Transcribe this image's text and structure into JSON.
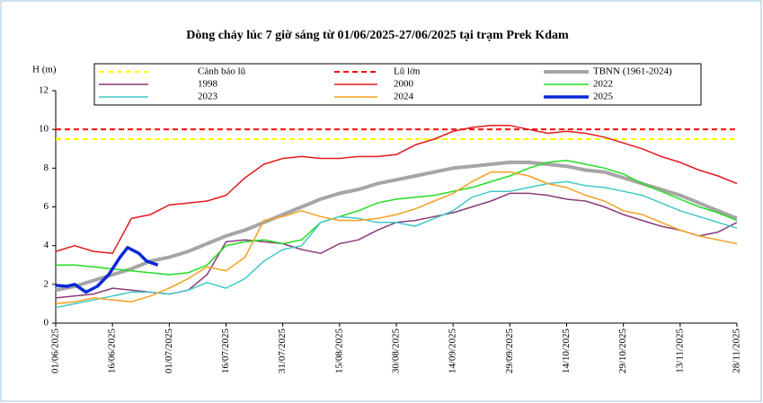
{
  "chart_data": {
    "type": "line",
    "title": "Dòng chảy lúc 7 giờ sáng từ 01/06/2025-27/06/2025 tại trạm Prek Kdam",
    "y_label": "H (m)",
    "ylim": [
      0,
      12
    ],
    "yticks": [
      0,
      2,
      4,
      6,
      8,
      10,
      12
    ],
    "xlim": [
      "01/06/2025",
      "28/11/2025"
    ],
    "xticks": [
      "01/06/2025",
      "16/06/2025",
      "01/07/2025",
      "16/07/2025",
      "31/07/2025",
      "15/08/2025",
      "30/08/2025",
      "14/09/2025",
      "29/09/2025",
      "14/10/2025",
      "29/10/2025",
      "13/11/2025",
      "28/11/2025"
    ],
    "thresholds": [
      {
        "name": "Cảnh báo lũ",
        "value": 9.5,
        "color": "#ffff00"
      },
      {
        "name": "Lũ lớn",
        "value": 10,
        "color": "#ff0000"
      }
    ],
    "x": [
      "01/06/2025",
      "06/06/2025",
      "11/06/2025",
      "16/06/2025",
      "21/06/2025",
      "26/06/2025",
      "01/07/2025",
      "06/07/2025",
      "11/07/2025",
      "16/07/2025",
      "21/07/2025",
      "26/07/2025",
      "31/07/2025",
      "05/08/2025",
      "10/08/2025",
      "15/08/2025",
      "20/08/2025",
      "25/08/2025",
      "30/08/2025",
      "04/09/2025",
      "09/09/2025",
      "14/09/2025",
      "19/09/2025",
      "24/09/2025",
      "29/09/2025",
      "04/10/2025",
      "09/10/2025",
      "14/10/2025",
      "19/10/2025",
      "24/10/2025",
      "29/10/2025",
      "03/11/2025",
      "08/11/2025",
      "13/11/2025",
      "18/11/2025",
      "23/11/2025",
      "28/11/2025"
    ],
    "series": [
      {
        "name": "TBNN (1961-2024)",
        "color": "#a6a6a6",
        "width": 4,
        "values": [
          1.7,
          1.9,
          2.2,
          2.5,
          2.8,
          3.2,
          3.4,
          3.7,
          4.1,
          4.5,
          4.8,
          5.2,
          5.6,
          6.0,
          6.4,
          6.7,
          6.9,
          7.2,
          7.4,
          7.6,
          7.8,
          8.0,
          8.1,
          8.2,
          8.3,
          8.3,
          8.2,
          8.1,
          7.9,
          7.8,
          7.5,
          7.2,
          6.9,
          6.6,
          6.2,
          5.8,
          5.4
        ]
      },
      {
        "name": "1998",
        "color": "#8b3a7a",
        "width": 1.5,
        "values": [
          1.3,
          1.4,
          1.5,
          1.8,
          1.7,
          1.6,
          1.5,
          1.7,
          2.5,
          4.2,
          4.3,
          4.2,
          4.1,
          3.8,
          3.6,
          4.1,
          4.3,
          4.8,
          5.2,
          5.3,
          5.5,
          5.7,
          6.0,
          6.3,
          6.7,
          6.7,
          6.6,
          6.4,
          6.3,
          6.0,
          5.6,
          5.3,
          5.0,
          4.8,
          4.5,
          4.7,
          5.2
        ]
      },
      {
        "name": "2000",
        "color": "#e31a1c",
        "width": 1.5,
        "values": [
          3.7,
          4.0,
          3.7,
          3.6,
          5.4,
          5.6,
          6.1,
          6.2,
          6.3,
          6.6,
          7.5,
          8.2,
          8.5,
          8.6,
          8.5,
          8.5,
          8.6,
          8.6,
          8.7,
          9.2,
          9.5,
          9.9,
          10.1,
          10.2,
          10.2,
          10.0,
          9.8,
          9.9,
          9.8,
          9.6,
          9.3,
          9.0,
          8.6,
          8.3,
          7.9,
          7.6,
          7.2
        ]
      },
      {
        "name": "2022",
        "color": "#22dd22",
        "width": 1.5,
        "values": [
          3.0,
          3.0,
          2.9,
          2.8,
          2.7,
          2.6,
          2.5,
          2.6,
          3.0,
          4.0,
          4.2,
          4.3,
          4.1,
          4.3,
          5.2,
          5.5,
          5.8,
          6.2,
          6.4,
          6.5,
          6.6,
          6.8,
          7.0,
          7.3,
          7.6,
          8.0,
          8.3,
          8.4,
          8.2,
          8.0,
          7.7,
          7.2,
          6.8,
          6.4,
          6.0,
          5.7,
          5.3
        ]
      },
      {
        "name": "2023",
        "color": "#40c8c8",
        "width": 1.5,
        "values": [
          0.8,
          1.0,
          1.2,
          1.4,
          1.6,
          1.6,
          1.5,
          1.7,
          2.1,
          1.8,
          2.3,
          3.2,
          3.8,
          4.0,
          5.2,
          5.5,
          5.4,
          5.2,
          5.2,
          5.0,
          5.4,
          5.8,
          6.5,
          6.8,
          6.8,
          7.0,
          7.2,
          7.3,
          7.1,
          7.0,
          6.8,
          6.6,
          6.2,
          5.8,
          5.5,
          5.2,
          4.9
        ]
      },
      {
        "name": "2024",
        "color": "#f5a020",
        "width": 1.5,
        "values": [
          1.0,
          1.1,
          1.3,
          1.2,
          1.1,
          1.4,
          1.8,
          2.3,
          2.9,
          2.7,
          3.4,
          5.3,
          5.5,
          5.8,
          5.5,
          5.3,
          5.3,
          5.4,
          5.6,
          5.9,
          6.3,
          6.7,
          7.3,
          7.8,
          7.8,
          7.6,
          7.2,
          7.0,
          6.6,
          6.3,
          5.8,
          5.6,
          5.2,
          4.8,
          4.5,
          4.3,
          4.1
        ]
      },
      {
        "name": "2025",
        "color": "#0a28d8",
        "width": 3.5,
        "x": [
          "01/06/2025",
          "04/06/2025",
          "06/06/2025",
          "09/06/2025",
          "12/06/2025",
          "15/06/2025",
          "18/06/2025",
          "20/06/2025",
          "23/06/2025",
          "25/06/2025",
          "28/06/2025"
        ],
        "values": [
          1.95,
          1.9,
          2.0,
          1.6,
          1.9,
          2.5,
          3.4,
          3.9,
          3.6,
          3.2,
          3.0
        ]
      }
    ]
  }
}
